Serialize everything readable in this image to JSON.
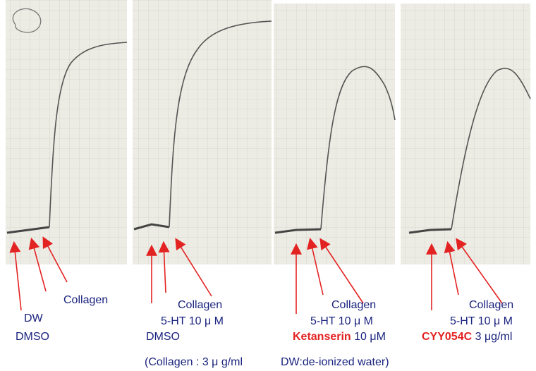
{
  "panels": [
    {
      "collagen": "Collagen",
      "second": "DW",
      "third": "DMSO"
    },
    {
      "collagen": "Collagen",
      "second": "5-HT 10 μ M",
      "third": "DMSO"
    },
    {
      "collagen": "Collagen",
      "second": "5-HT 10 μ M",
      "drug": "Ketanserin",
      "dose": "10 μM"
    },
    {
      "collagen": "Collagen",
      "second": "5-HT 10 μ M",
      "drug": "CYY054C",
      "dose": "3 μg/ml"
    }
  ],
  "footnote": {
    "collagen": "(Collagen : 3 μ g/ml",
    "dw": "DW:de-ionized water)"
  }
}
